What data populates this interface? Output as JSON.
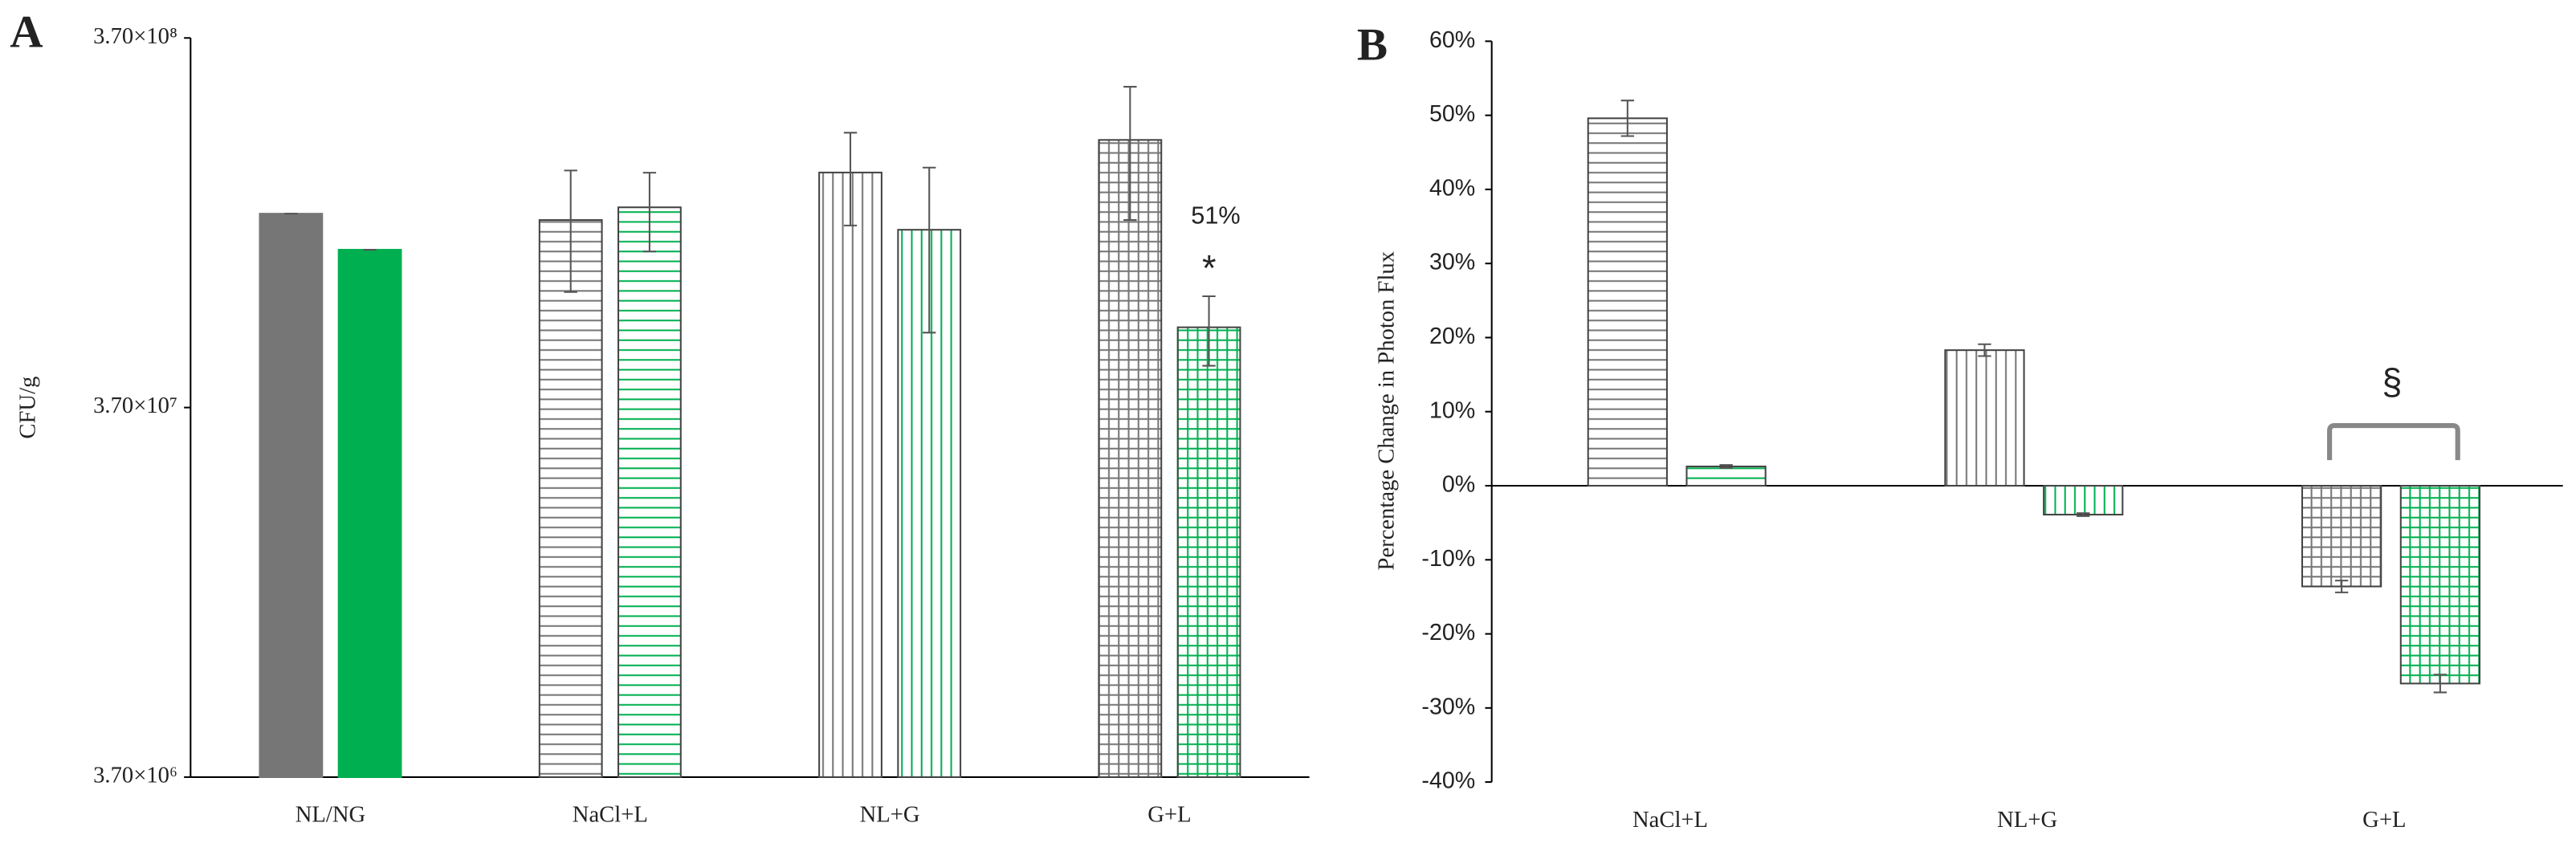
{
  "chart_data": [
    {
      "type": "bar",
      "panel": "A",
      "ylabel": "CFU/g",
      "log": true,
      "categories": [
        "NL/NG",
        "NaCl+L",
        "NL+G",
        "G+L"
      ],
      "patterns": [
        "solid",
        "horizontal",
        "vertical",
        "grid"
      ],
      "series": [
        {
          "color": "#767676",
          "values": [
            123800000,
            119000000,
            160000000,
            196000000
          ],
          "errors": [
            0,
            43000000,
            45000000,
            77000000
          ]
        },
        {
          "color": "#00b050",
          "values": [
            98900000,
            128800000,
            112000000,
            61000000
          ],
          "errors": [
            0,
            31000000,
            53000000,
            13000000
          ]
        }
      ],
      "ylim": [
        3700000,
        370000000
      ],
      "yticks": [
        {
          "value": 3700000,
          "label": "3.70×10⁶"
        },
        {
          "value": 37000000,
          "label": "3.70×10⁷"
        },
        {
          "value": 370000000,
          "label": "3.70×10⁸"
        }
      ],
      "annotations": [
        "51%",
        "*"
      ]
    },
    {
      "type": "bar",
      "panel": "B",
      "ylabel": "Percentage Change in Photon Flux",
      "categories": [
        "NaCl+L",
        "NL+G",
        "G+L"
      ],
      "patterns": [
        "horizontal",
        "vertical",
        "grid"
      ],
      "series": [
        {
          "color": "#767676",
          "values": [
            49.6,
            18.3,
            -13.6
          ],
          "errors": [
            2.4,
            0.8,
            0.8
          ]
        },
        {
          "color": "#00b050",
          "values": [
            2.6,
            -3.9,
            -26.7
          ],
          "errors": [
            0.2,
            0.2,
            1.2
          ]
        }
      ],
      "ylim": [
        -40,
        60
      ],
      "yticks": [
        {
          "value": -40,
          "label": "-40%"
        },
        {
          "value": -30,
          "label": "-30%"
        },
        {
          "value": -20,
          "label": "-20%"
        },
        {
          "value": -10,
          "label": "-10%"
        },
        {
          "value": 0,
          "label": "0%"
        },
        {
          "value": 10,
          "label": "10%"
        },
        {
          "value": 20,
          "label": "20%"
        },
        {
          "value": 30,
          "label": "30%"
        },
        {
          "value": 40,
          "label": "40%"
        },
        {
          "value": 50,
          "label": "50%"
        },
        {
          "value": 60,
          "label": "60%"
        }
      ],
      "annotations": [
        "§"
      ]
    }
  ]
}
